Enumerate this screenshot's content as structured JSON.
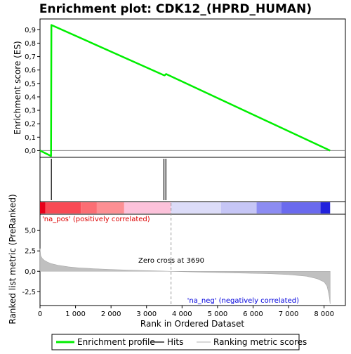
{
  "chart_data": {
    "type": "line",
    "title": "Enrichment plot: CDK12_(HPRD_HUMAN)",
    "es_panel": {
      "ylabel": "Enrichment score (ES)",
      "ylim": [
        -0.05,
        0.98
      ],
      "yticks": [
        "0,0",
        "0,1",
        "0,2",
        "0,3",
        "0,4",
        "0,5",
        "0,6",
        "0,7",
        "0,8",
        "0,9"
      ],
      "ytick_values": [
        0,
        0.1,
        0.2,
        0.3,
        0.4,
        0.5,
        0.6,
        0.7,
        0.8,
        0.9
      ],
      "series": [
        {
          "name": "Enrichment profile",
          "color": "#00ee00",
          "x": [
            0,
            310,
            320,
            3480,
            3510,
            3550,
            8170
          ],
          "y": [
            0.0,
            -0.04,
            0.935,
            0.562,
            0.56,
            0.57,
            0.0
          ]
        }
      ]
    },
    "hits": {
      "name": "Hits",
      "positions": [
        320,
        3490,
        3545
      ]
    },
    "ranked_panel": {
      "ylabel": "Ranked list metric (PreRanked)",
      "xlabel": "Rank in Ordered Dataset",
      "xlim": [
        0,
        8600
      ],
      "ylim": [
        -4.2,
        7.0
      ],
      "yticks": [
        "-2,5",
        "0,0",
        "2,5",
        "5,0"
      ],
      "ytick_values": [
        -2.5,
        0,
        2.5,
        5.0
      ],
      "xticks": [
        "0",
        "1 000",
        "2 000",
        "3 000",
        "4 000",
        "5 000",
        "6 000",
        "7 000",
        "8 000"
      ],
      "xtick_values": [
        0,
        1000,
        2000,
        3000,
        4000,
        5000,
        6000,
        7000,
        8000
      ],
      "series": {
        "name": "Ranking metric scores",
        "color": "#c0c0c0",
        "x": [
          0,
          20,
          60,
          120,
          200,
          300,
          500,
          800,
          1100,
          1500,
          2000,
          2500,
          3000,
          3690,
          4500,
          5500,
          6500,
          7000,
          7500,
          7800,
          8000,
          8080,
          8120,
          8150,
          8170
        ],
        "y": [
          2.8,
          1.9,
          1.6,
          1.35,
          1.15,
          0.95,
          0.75,
          0.55,
          0.42,
          0.32,
          0.22,
          0.14,
          0.08,
          0.0,
          -0.1,
          -0.2,
          -0.3,
          -0.4,
          -0.6,
          -0.9,
          -1.3,
          -1.8,
          -2.5,
          -3.2,
          -4.0
        ]
      },
      "zero_cross_label": "Zero cross at 3690",
      "zero_cross_rank": 3690,
      "pos_label": "'na_pos' (positively correlated)",
      "neg_label": "'na_neg' (negatively correlated)",
      "pos_label_color": "#dd0000",
      "neg_label_color": "#0000dd"
    },
    "heatmap_bar": {
      "segments": [
        {
          "x0": 0,
          "x1": 150,
          "color": "#e8001a"
        },
        {
          "x0": 150,
          "x1": 1150,
          "color": "#f84a55"
        },
        {
          "x0": 1150,
          "x1": 1600,
          "color": "#fb6e74"
        },
        {
          "x0": 1600,
          "x1": 2370,
          "color": "#fc8f93"
        },
        {
          "x0": 2370,
          "x1": 3690,
          "color": "#fcc2da"
        },
        {
          "x0": 3690,
          "x1": 5100,
          "color": "#dcdcf8"
        },
        {
          "x0": 5100,
          "x1": 6100,
          "color": "#c6c6f6"
        },
        {
          "x0": 6100,
          "x1": 6800,
          "color": "#8c8cf2"
        },
        {
          "x0": 6800,
          "x1": 7900,
          "color": "#6a6aee"
        },
        {
          "x0": 7900,
          "x1": 8170,
          "color": "#2222dd"
        }
      ]
    },
    "legend": [
      {
        "label": "Enrichment profile",
        "color": "#00ee00"
      },
      {
        "label": "Hits",
        "color": "#000000"
      },
      {
        "label": "Ranking metric scores",
        "color": "#c0c0c0"
      }
    ]
  }
}
